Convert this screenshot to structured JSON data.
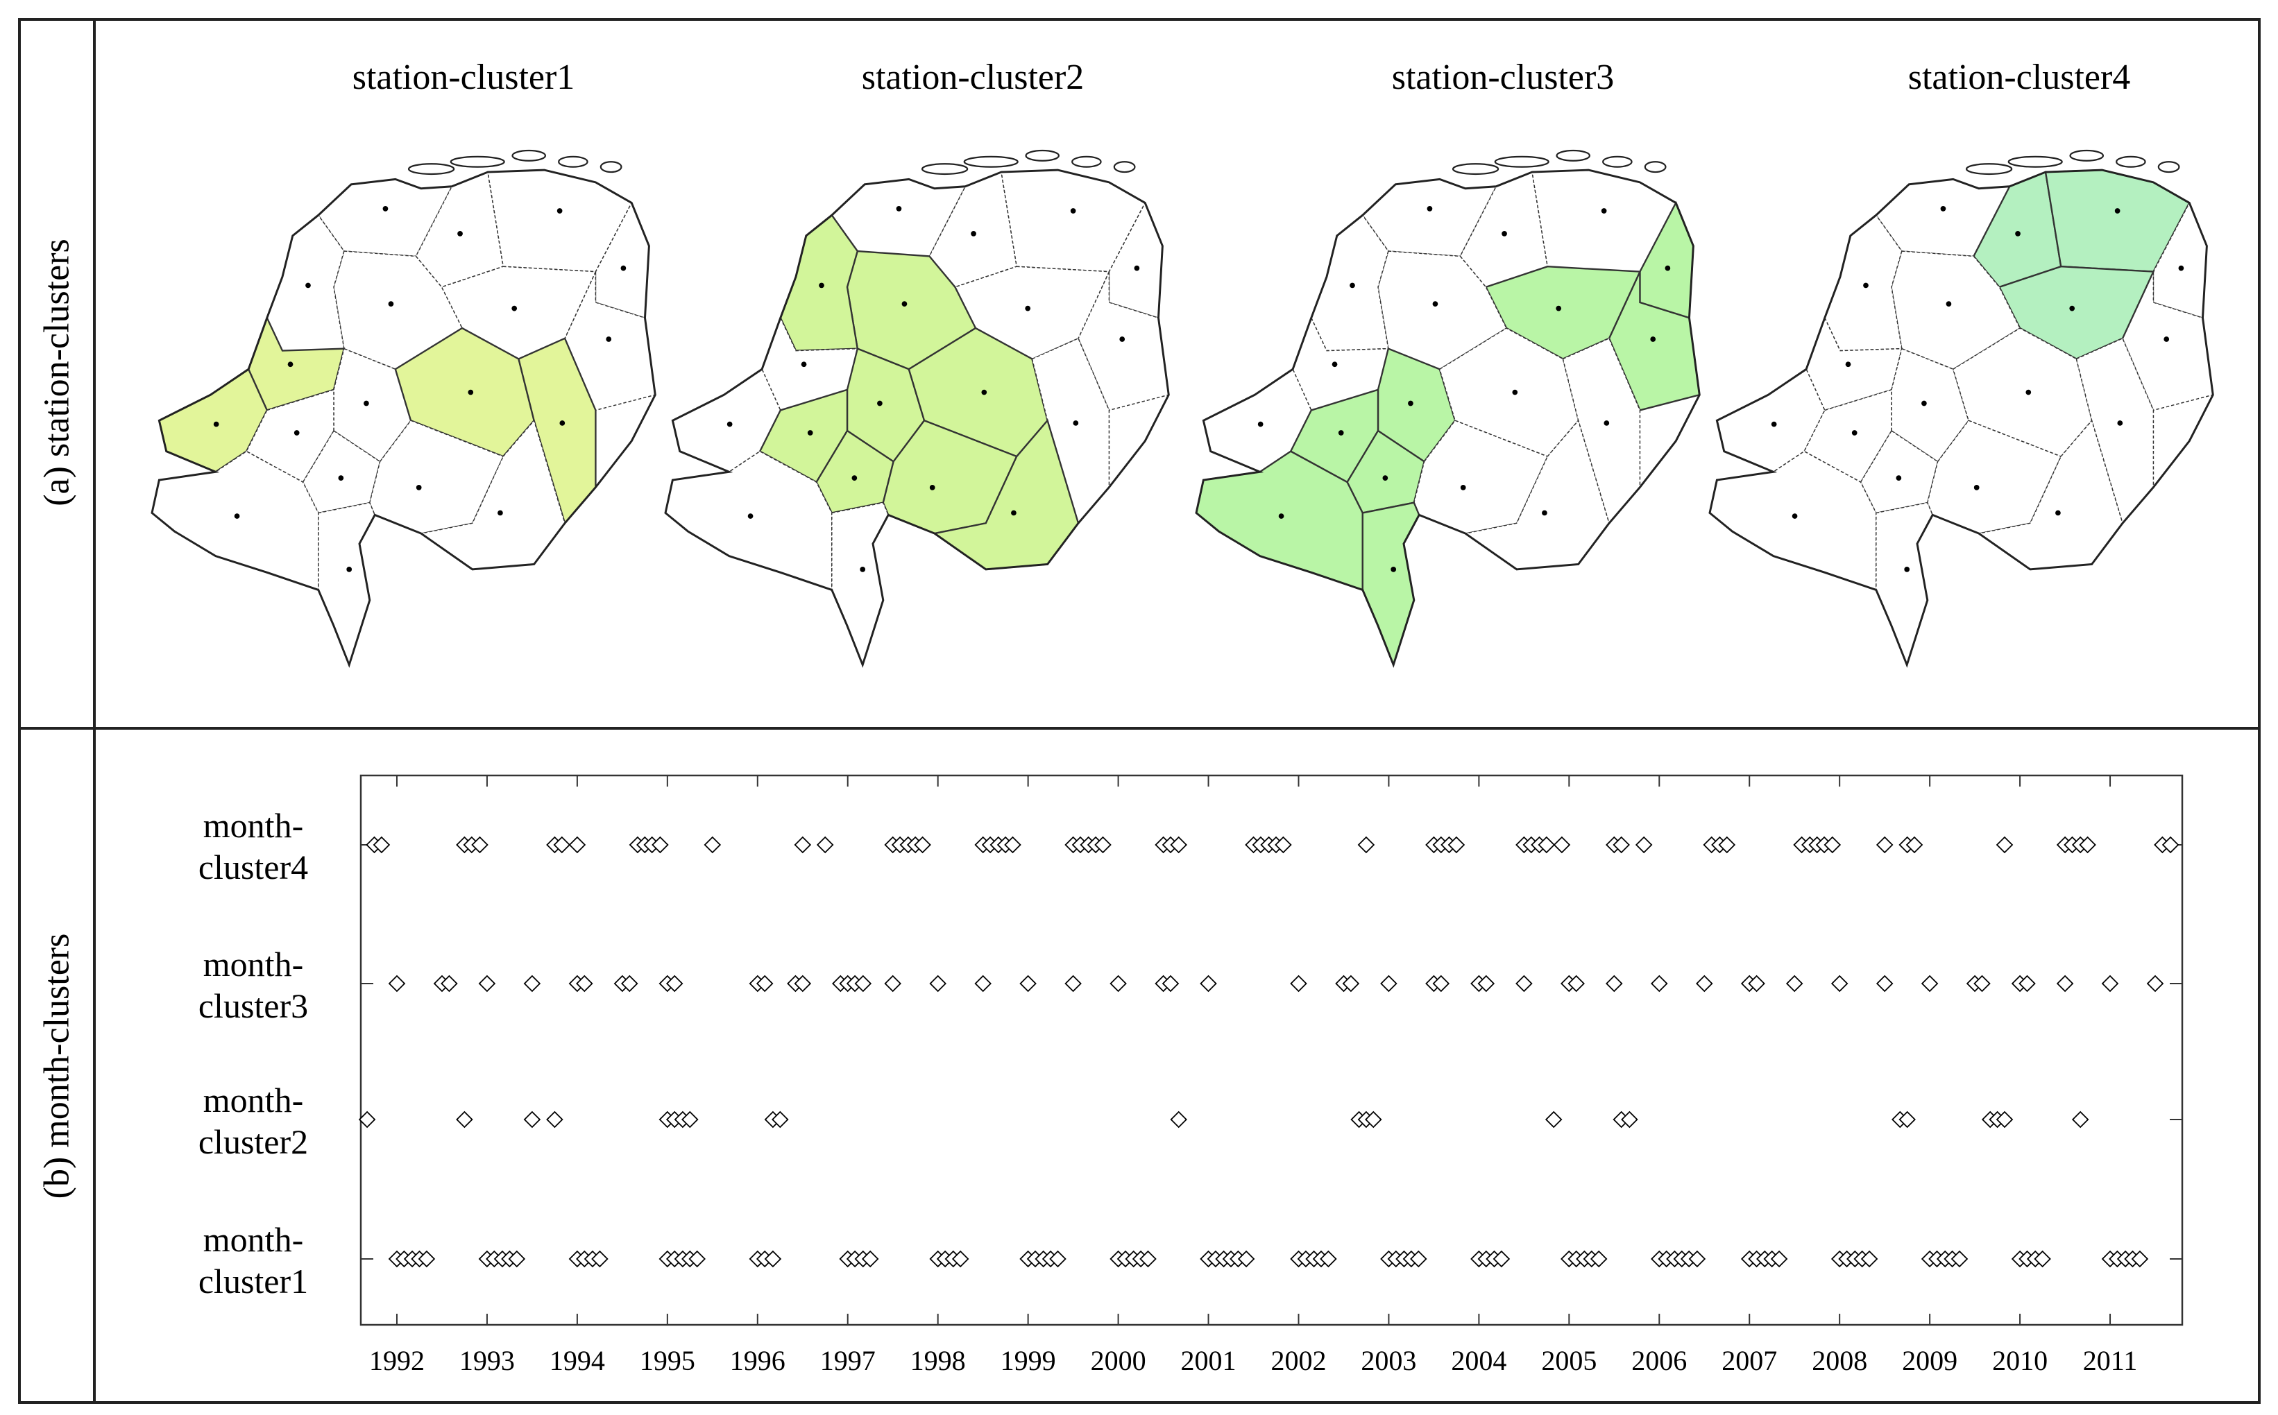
{
  "panel_a": {
    "label": "(a) station-clusters",
    "maps": [
      {
        "title": "station-cluster1",
        "fill": "#e2f59a",
        "highlight": [
          8,
          10,
          11,
          12
        ]
      },
      {
        "title": "station-cluster2",
        "fill": "#d2f59a",
        "highlight": [
          6,
          7,
          9,
          10,
          13,
          14,
          15,
          16
        ]
      },
      {
        "title": "station-cluster3",
        "fill": "#b9f5a6",
        "highlight": [
          3,
          4,
          5,
          9,
          13,
          14,
          17,
          18
        ]
      },
      {
        "title": "station-cluster4",
        "fill": "#b4f0c0",
        "highlight": [
          1,
          2,
          5
        ]
      }
    ]
  },
  "panel_b": {
    "label": "(b) month-clusters",
    "colors": {
      "marker": "#000000",
      "frame": "#333333"
    }
  },
  "chart_data": {
    "type": "scatter",
    "title": "",
    "xlabel": "",
    "ylabel": "",
    "xlim": [
      1991.6,
      2011.8
    ],
    "x_ticks": [
      "1992",
      "1993",
      "1994",
      "1995",
      "1996",
      "1997",
      "1998",
      "1999",
      "2000",
      "2001",
      "2002",
      "2003",
      "2004",
      "2005",
      "2006",
      "2007",
      "2008",
      "2009",
      "2010",
      "2011"
    ],
    "categories": [
      {
        "line1": "month-",
        "line2": "cluster4"
      },
      {
        "line1": "month-",
        "line2": "cluster3"
      },
      {
        "line1": "month-",
        "line2": "cluster2"
      },
      {
        "line1": "month-",
        "line2": "cluster1"
      }
    ],
    "series": [
      {
        "values": [
          1991.75,
          1991.83,
          1992.75,
          1992.83,
          1992.92,
          1993.75,
          1993.83,
          1994.0,
          1994.67,
          1994.75,
          1994.83,
          1994.92,
          1995.5,
          1996.5,
          1996.75,
          1997.5,
          1997.58,
          1997.67,
          1997.75,
          1997.83,
          1998.5,
          1998.58,
          1998.67,
          1998.75,
          1998.83,
          1999.5,
          1999.58,
          1999.67,
          1999.75,
          1999.83,
          2000.5,
          2000.58,
          2000.67,
          2001.5,
          2001.58,
          2001.67,
          2001.75,
          2001.83,
          2002.75,
          2003.5,
          2003.58,
          2003.67,
          2003.75,
          2004.5,
          2004.58,
          2004.67,
          2004.75,
          2004.92,
          2005.5,
          2005.58,
          2005.83,
          2006.58,
          2006.67,
          2006.75,
          2007.58,
          2007.67,
          2007.75,
          2007.83,
          2007.92,
          2008.5,
          2008.75,
          2008.83,
          2009.83,
          2010.5,
          2010.58,
          2010.67,
          2010.75,
          2011.58,
          2011.67
        ]
      },
      {
        "values": [
          1992.0,
          1992.5,
          1992.58,
          1993.0,
          1993.5,
          1994.0,
          1994.08,
          1994.5,
          1994.58,
          1995.0,
          1995.08,
          1996.0,
          1996.08,
          1996.42,
          1996.5,
          1996.92,
          1997.0,
          1997.08,
          1997.17,
          1997.5,
          1998.0,
          1998.5,
          1999.0,
          1999.5,
          2000.0,
          2000.5,
          2000.58,
          2001.0,
          2002.0,
          2002.5,
          2002.58,
          2003.0,
          2003.5,
          2003.58,
          2004.0,
          2004.08,
          2004.5,
          2005.0,
          2005.08,
          2005.5,
          2006.0,
          2006.5,
          2007.0,
          2007.08,
          2007.5,
          2008.0,
          2008.5,
          2009.0,
          2009.5,
          2009.58,
          2010.0,
          2010.08,
          2010.5,
          2011.0,
          2011.5
        ]
      },
      {
        "values": [
          1991.67,
          1992.75,
          1993.5,
          1993.75,
          1995.0,
          1995.08,
          1995.17,
          1995.25,
          1996.17,
          1996.25,
          2000.67,
          2002.67,
          2002.75,
          2002.83,
          2004.83,
          2005.58,
          2005.67,
          2008.67,
          2008.75,
          2009.67,
          2009.75,
          2009.83,
          2010.67
        ]
      },
      {
        "values": [
          1992.0,
          1992.08,
          1992.17,
          1992.25,
          1992.33,
          1993.0,
          1993.08,
          1993.17,
          1993.25,
          1993.33,
          1994.0,
          1994.08,
          1994.17,
          1994.25,
          1995.0,
          1995.08,
          1995.17,
          1995.25,
          1995.33,
          1996.0,
          1996.08,
          1996.17,
          1997.0,
          1997.08,
          1997.17,
          1997.25,
          1998.0,
          1998.08,
          1998.17,
          1998.25,
          1999.0,
          1999.08,
          1999.17,
          1999.25,
          1999.33,
          2000.0,
          2000.08,
          2000.17,
          2000.25,
          2000.33,
          2001.0,
          2001.08,
          2001.17,
          2001.25,
          2001.33,
          2001.42,
          2002.0,
          2002.08,
          2002.17,
          2002.25,
          2002.33,
          2003.0,
          2003.08,
          2003.17,
          2003.25,
          2003.33,
          2004.0,
          2004.08,
          2004.17,
          2004.25,
          2005.0,
          2005.08,
          2005.17,
          2005.25,
          2005.33,
          2006.0,
          2006.08,
          2006.17,
          2006.25,
          2006.33,
          2006.42,
          2007.0,
          2007.08,
          2007.17,
          2007.25,
          2007.33,
          2008.0,
          2008.08,
          2008.17,
          2008.25,
          2008.33,
          2009.0,
          2009.08,
          2009.17,
          2009.25,
          2009.33,
          2010.0,
          2010.08,
          2010.17,
          2010.25,
          2011.0,
          2011.08,
          2011.17,
          2011.25,
          2011.33
        ]
      }
    ]
  }
}
